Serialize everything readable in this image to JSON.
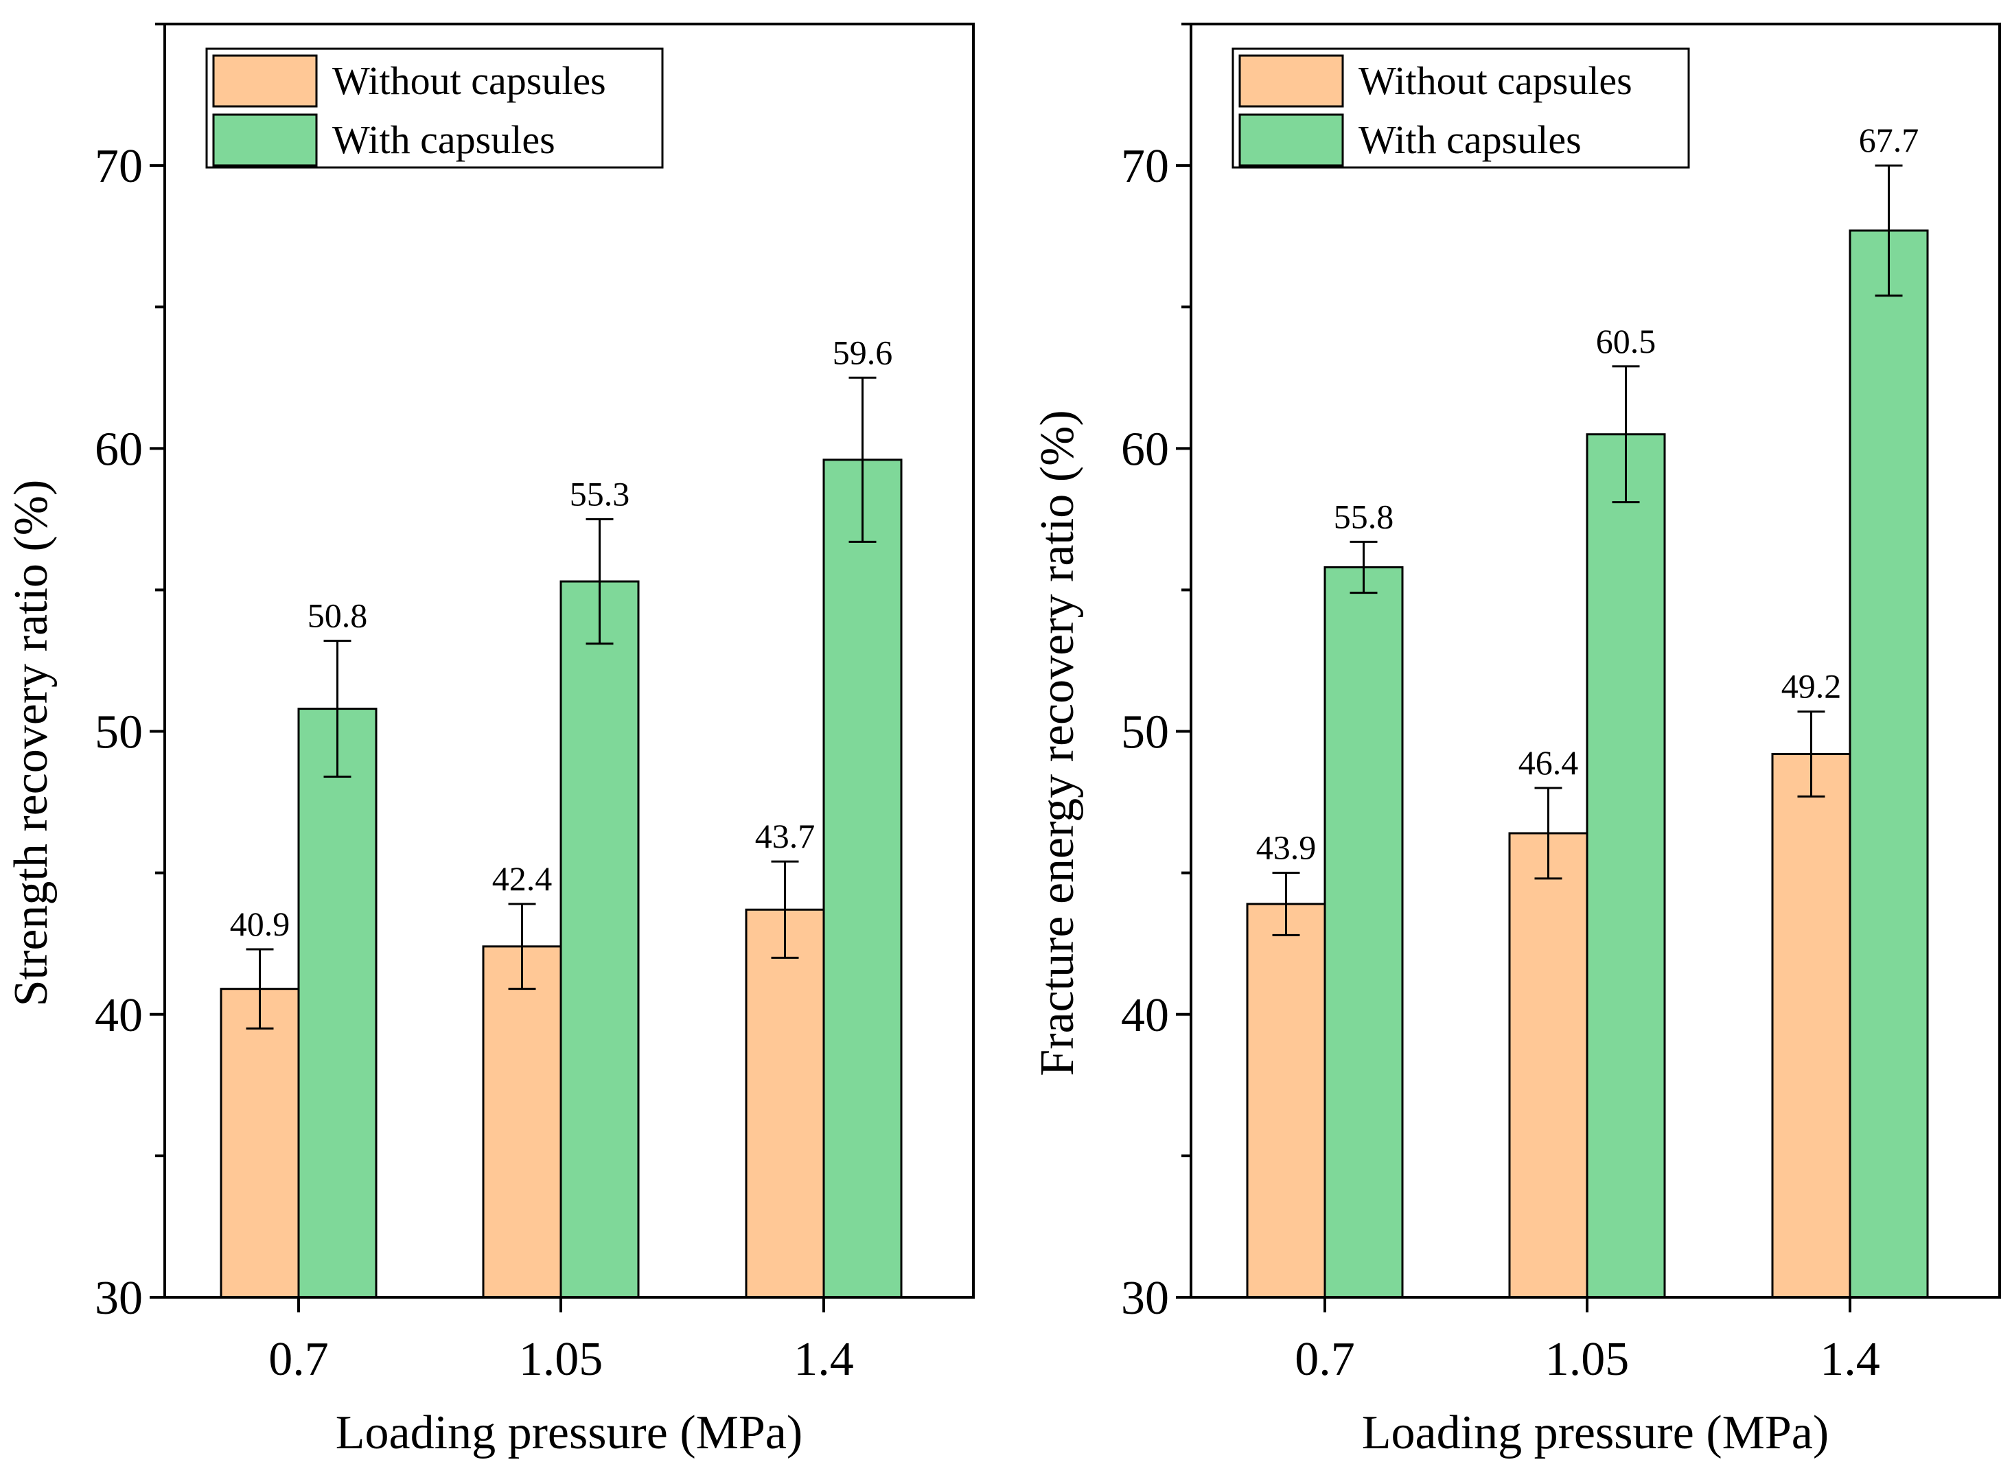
{
  "colors": {
    "without": "#ffc896",
    "with": "#7fd899",
    "axis": "#000000"
  },
  "chart_data": [
    {
      "type": "bar",
      "categories": [
        "0.7",
        "1.05",
        "1.4"
      ],
      "series": [
        {
          "name": "Without capsules",
          "values": [
            40.9,
            42.4,
            43.7
          ],
          "errors": [
            1.4,
            1.5,
            1.7
          ]
        },
        {
          "name": "With capsules",
          "values": [
            50.8,
            55.3,
            59.6
          ],
          "errors": [
            2.4,
            2.2,
            2.9
          ]
        }
      ],
      "data_labels": [
        [
          "40.9",
          "42.4",
          "43.7"
        ],
        [
          "50.8",
          "55.3",
          "59.6"
        ]
      ],
      "xlabel": "Loading pressure (MPa)",
      "ylabel": "Strength recovery ratio (%)",
      "ylim": [
        30,
        75
      ],
      "yticks": [
        "30",
        "40",
        "50",
        "60",
        "70"
      ],
      "legend": "top-left",
      "grid": false
    },
    {
      "type": "bar",
      "categories": [
        "0.7",
        "1.05",
        "1.4"
      ],
      "series": [
        {
          "name": "Without capsules",
          "values": [
            43.9,
            46.4,
            49.2
          ],
          "errors": [
            1.1,
            1.6,
            1.5
          ]
        },
        {
          "name": "With capsules",
          "values": [
            55.8,
            60.5,
            67.7
          ],
          "errors": [
            0.9,
            2.4,
            2.3
          ]
        }
      ],
      "data_labels": [
        [
          "43.9",
          "46.4",
          "49.2"
        ],
        [
          "55.8",
          "60.5",
          "67.7"
        ]
      ],
      "xlabel": "Loading pressure (MPa)",
      "ylabel": "Fracture energy recovery ratio (%)",
      "ylim": [
        30,
        75
      ],
      "yticks": [
        "30",
        "40",
        "50",
        "60",
        "70"
      ],
      "legend": "top-left",
      "grid": false
    }
  ]
}
